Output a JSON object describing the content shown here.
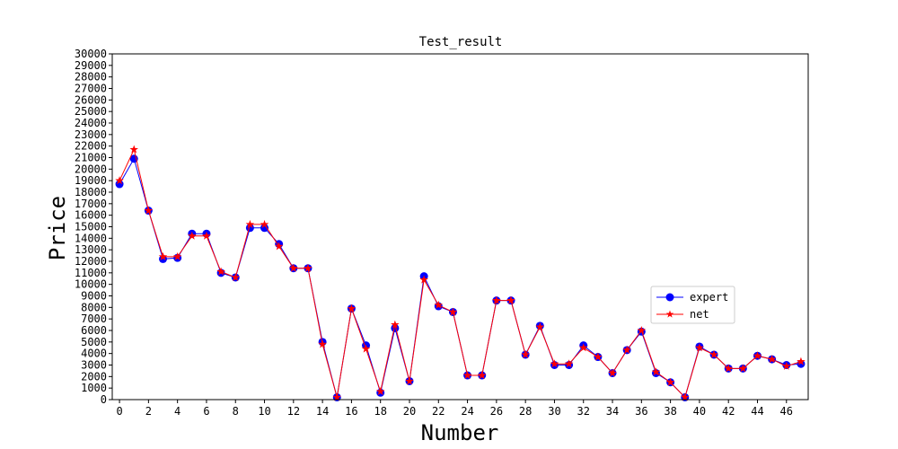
{
  "chart_data": {
    "type": "line",
    "title": "Test_result",
    "xlabel": "Number",
    "ylabel": "Price",
    "xlim": [
      -0.5,
      47.5
    ],
    "ylim": [
      0,
      30000
    ],
    "x_ticks": [
      0,
      2,
      4,
      6,
      8,
      10,
      12,
      14,
      16,
      18,
      20,
      22,
      24,
      26,
      28,
      30,
      32,
      34,
      36,
      38,
      40,
      42,
      44,
      46
    ],
    "y_ticks": [
      0,
      1000,
      2000,
      3000,
      4000,
      5000,
      6000,
      7000,
      8000,
      9000,
      10000,
      11000,
      12000,
      13000,
      14000,
      15000,
      16000,
      17000,
      18000,
      19000,
      20000,
      21000,
      22000,
      23000,
      24000,
      25000,
      26000,
      27000,
      28000,
      29000,
      30000
    ],
    "grid": false,
    "legend_position": "center-right",
    "x": [
      0,
      1,
      2,
      3,
      4,
      5,
      6,
      7,
      8,
      9,
      10,
      11,
      12,
      13,
      14,
      15,
      16,
      17,
      18,
      19,
      20,
      21,
      22,
      23,
      24,
      25,
      26,
      27,
      28,
      29,
      30,
      31,
      32,
      33,
      34,
      35,
      36,
      37,
      38,
      39,
      40,
      41,
      42,
      43,
      44,
      45,
      46,
      47
    ],
    "series": [
      {
        "name": "expert",
        "color": "#0000ff",
        "marker": "circle",
        "values": [
          18700,
          20900,
          16400,
          12200,
          12300,
          14400,
          14400,
          11000,
          10600,
          14900,
          14900,
          13500,
          11400,
          11400,
          5000,
          200,
          7900,
          4700,
          600,
          6200,
          1600,
          10700,
          8100,
          7600,
          2100,
          2100,
          8600,
          8600,
          3900,
          6400,
          3000,
          3000,
          4700,
          3700,
          2300,
          4300,
          5900,
          2300,
          1500,
          200,
          4600,
          3900,
          2700,
          2700,
          3800,
          3500,
          3000,
          3100
        ]
      },
      {
        "name": "net",
        "color": "#ff0000",
        "marker": "star",
        "values": [
          19000,
          21700,
          16400,
          12400,
          12400,
          14200,
          14200,
          11100,
          10600,
          15200,
          15200,
          13300,
          11400,
          11400,
          4800,
          200,
          7900,
          4400,
          700,
          6500,
          1600,
          10400,
          8200,
          7600,
          2100,
          2100,
          8600,
          8600,
          3900,
          6300,
          3100,
          3100,
          4500,
          3700,
          2300,
          4300,
          6000,
          2400,
          1500,
          200,
          4500,
          3900,
          2700,
          2700,
          3800,
          3500,
          2900,
          3300
        ]
      }
    ]
  }
}
